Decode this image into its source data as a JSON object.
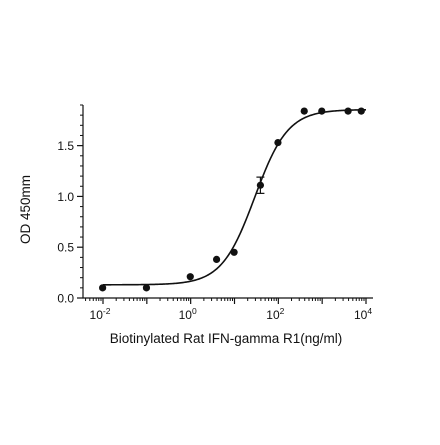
{
  "chart_data": {
    "type": "scatter",
    "title": "",
    "xlabel": "Biotinylated Rat IFN-gamma R1(ng/ml)",
    "ylabel": "OD 450mm",
    "x_scale": "log10",
    "xlim": [
      0.005,
      12000
    ],
    "ylim": [
      0,
      1.9
    ],
    "x_ticks": [
      {
        "value": 0.01,
        "base": "10",
        "exp": "-2"
      },
      {
        "value": 1,
        "base": "10",
        "exp": "0"
      },
      {
        "value": 100,
        "base": "10",
        "exp": "2"
      },
      {
        "value": 10000,
        "base": "10",
        "exp": "4"
      }
    ],
    "y_ticks": [
      {
        "value": 0,
        "label": "0.0"
      },
      {
        "value": 0.5,
        "label": "0.5"
      },
      {
        "value": 1.0,
        "label": "1.0"
      },
      {
        "value": 1.5,
        "label": "1.5"
      }
    ],
    "grid": false,
    "legend": "none",
    "point_color": "#111111",
    "points": [
      {
        "x": 0.0098,
        "y": 0.1
      },
      {
        "x": 0.098,
        "y": 0.1
      },
      {
        "x": 0.98,
        "y": 0.21
      },
      {
        "x": 3.9,
        "y": 0.38
      },
      {
        "x": 9.8,
        "y": 0.45
      },
      {
        "x": 39,
        "y": 1.11,
        "err": 0.08
      },
      {
        "x": 98,
        "y": 1.53
      },
      {
        "x": 390,
        "y": 1.84
      },
      {
        "x": 980,
        "y": 1.84
      },
      {
        "x": 3900,
        "y": 1.84
      },
      {
        "x": 7800,
        "y": 1.84
      }
    ],
    "fit": {
      "model": "4PL",
      "bottom": 0.13,
      "top": 1.855,
      "ec50": 29,
      "hill": 1.15
    }
  }
}
